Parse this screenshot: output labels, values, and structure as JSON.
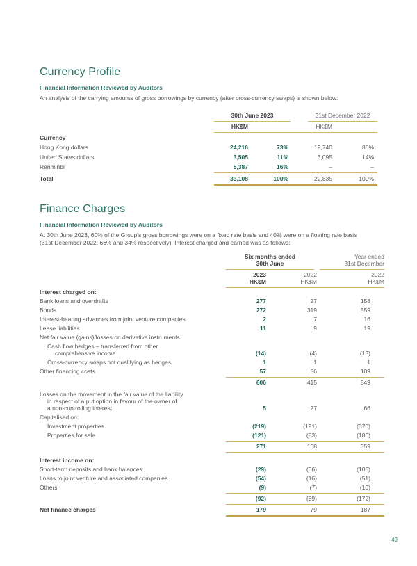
{
  "page": {
    "number": "49"
  },
  "colors": {
    "teal_heading": "#2e7366",
    "teal_value": "#1e6153",
    "gold_rule": "#d4b76c",
    "gold_rule_heavy": "#c3a04a",
    "body_gray": "#55565a",
    "dark_label": "#3d3e42"
  },
  "currency_profile": {
    "title": "Currency Profile",
    "subtitle": "Financial Information Reviewed by Auditors",
    "intro": "An analysis of the carrying amounts of gross borrowings by currency (after cross-currency swaps) is shown below:",
    "table": {
      "group1": "30th June 2023",
      "group2": "31st December 2022",
      "unit1": "HK$M",
      "unit2": "HK$M",
      "section": "Currency",
      "rows": [
        {
          "label": "Hong Kong dollars",
          "values": [
            "24,216",
            "73%",
            "19,740",
            "86%"
          ]
        },
        {
          "label": "United States dollars",
          "values": [
            "3,505",
            "11%",
            "3,095",
            "14%"
          ]
        },
        {
          "label": "Renminbi",
          "values": [
            "5,387",
            "16%",
            "–",
            "–"
          ]
        }
      ],
      "total": {
        "label": "Total",
        "values": [
          "33,108",
          "100%",
          "22,835",
          "100%"
        ]
      }
    }
  },
  "finance_charges": {
    "title": "Finance Charges",
    "subtitle": "Financial Information Reviewed by Auditors",
    "intro_lines": [
      "At 30th June 2023, 60% of the Group's gross borrowings were on a fixed rate basis and 40% were on a floating rate basis",
      "(31st December 2022: 66% and 34% respectively). Interest charged and earned was as follows:"
    ],
    "table": {
      "group1_lines": [
        "Six months ended",
        "30th June"
      ],
      "group2_lines": [
        "Year ended",
        "31st December"
      ],
      "columns": [
        {
          "year": "2023",
          "unit": "HK$M"
        },
        {
          "year": "2022",
          "unit": "HK$M"
        },
        {
          "year": "2022",
          "unit": "HK$M"
        }
      ],
      "rows": [
        {
          "type": "section",
          "lines": [
            "Interest charged on:"
          ],
          "values": [
            "",
            "",
            ""
          ]
        },
        {
          "type": "data",
          "indent": 0,
          "lines": [
            "Bank loans and overdrafts"
          ],
          "values": [
            "277",
            "27",
            "158"
          ]
        },
        {
          "type": "data",
          "indent": 0,
          "lines": [
            "Bonds"
          ],
          "values": [
            "272",
            "319",
            "559"
          ]
        },
        {
          "type": "data",
          "indent": 0,
          "lines": [
            "Interest-bearing advances from joint venture companies"
          ],
          "values": [
            "2",
            "7",
            "16"
          ]
        },
        {
          "type": "data",
          "indent": 0,
          "lines": [
            "Lease liabilities"
          ],
          "values": [
            "11",
            "9",
            "19"
          ]
        },
        {
          "type": "data",
          "indent": 0,
          "lines": [
            "Net fair value (gains)/losses on derivative instruments"
          ],
          "values": [
            "",
            "",
            ""
          ]
        },
        {
          "type": "data",
          "indent": 1,
          "lines": [
            "Cash flow hedges – transferred from other",
            "comprehensive income"
          ],
          "values": [
            "(14)",
            "(4)",
            "(13)"
          ]
        },
        {
          "type": "data",
          "indent": 1,
          "lines": [
            "Cross-currency swaps not qualifying as hedges"
          ],
          "values": [
            "1",
            "1",
            "1"
          ]
        },
        {
          "type": "data",
          "indent": 0,
          "lines": [
            "Other financing costs"
          ],
          "values": [
            "57",
            "56",
            "109"
          ]
        },
        {
          "type": "rule"
        },
        {
          "type": "data",
          "indent": 0,
          "lines": [],
          "values": [
            "606",
            "415",
            "849"
          ]
        },
        {
          "type": "gap"
        },
        {
          "type": "data",
          "indent": 0,
          "lines": [
            "Losses on the movement in the fair value of the liability",
            "in respect of a put option in favour of the owner of",
            "a non-controlling interest"
          ],
          "values": [
            "5",
            "27",
            "66"
          ]
        },
        {
          "type": "data",
          "indent": 0,
          "lines": [
            "Capitalised on:"
          ],
          "values": [
            "",
            "",
            ""
          ]
        },
        {
          "type": "data",
          "indent": 1,
          "lines": [
            "Investment properties"
          ],
          "values": [
            "(219)",
            "(191)",
            "(370)"
          ]
        },
        {
          "type": "data",
          "indent": 1,
          "lines": [
            "Properties for sale"
          ],
          "values": [
            "(121)",
            "(83)",
            "(186)"
          ]
        },
        {
          "type": "rule"
        },
        {
          "type": "data",
          "indent": 0,
          "lines": [],
          "values": [
            "271",
            "168",
            "359"
          ]
        },
        {
          "type": "rule"
        },
        {
          "type": "gap"
        },
        {
          "type": "section",
          "lines": [
            "Interest income on:"
          ],
          "values": [
            "",
            "",
            ""
          ]
        },
        {
          "type": "data",
          "indent": 0,
          "lines": [
            "Short-term deposits and bank balances"
          ],
          "values": [
            "(29)",
            "(66)",
            "(105)"
          ]
        },
        {
          "type": "data",
          "indent": 0,
          "lines": [
            "Loans to joint venture and associated companies"
          ],
          "values": [
            "(54)",
            "(16)",
            "(51)"
          ]
        },
        {
          "type": "data",
          "indent": 0,
          "lines": [
            "Others"
          ],
          "values": [
            "(9)",
            "(7)",
            "(16)"
          ]
        },
        {
          "type": "rule"
        },
        {
          "type": "data",
          "indent": 0,
          "lines": [],
          "values": [
            "(92)",
            "(89)",
            "(172)"
          ]
        },
        {
          "type": "rule"
        },
        {
          "type": "total",
          "lines": [
            "Net finance charges"
          ],
          "values": [
            "179",
            "79",
            "187"
          ]
        },
        {
          "type": "rule-thick"
        }
      ]
    }
  }
}
